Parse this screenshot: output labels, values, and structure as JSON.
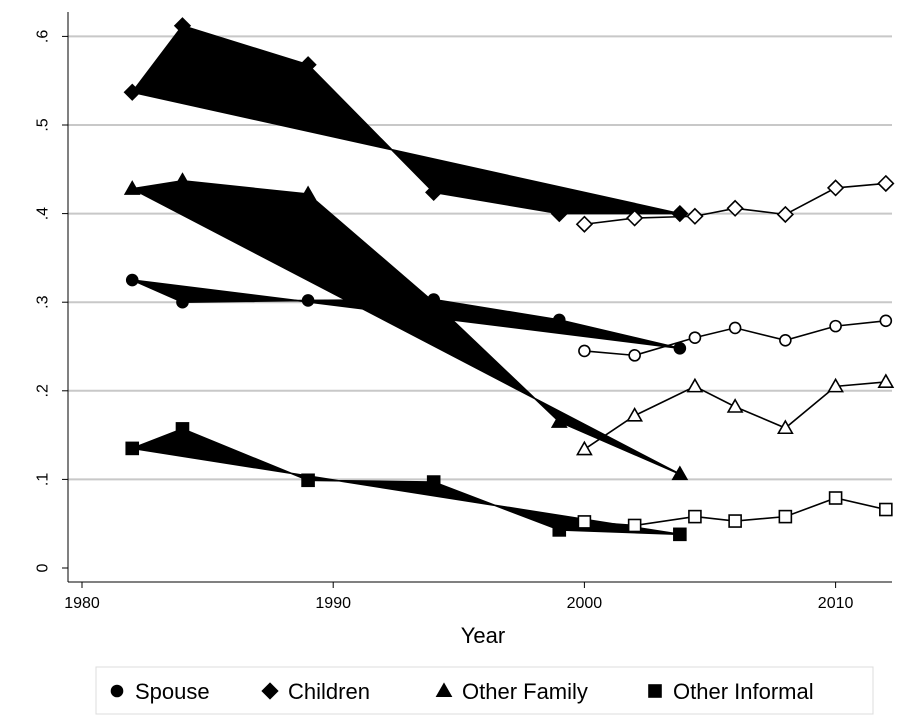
{
  "chart_data": {
    "type": "line",
    "title": "",
    "xlabel": "Year",
    "ylabel": "",
    "xlim": [
      1980,
      2012.5
    ],
    "ylim": [
      0,
      0.6
    ],
    "xticks": [
      1980,
      1990,
      2000,
      2010
    ],
    "yticks": [
      0,
      0.1,
      0.2,
      0.3,
      0.4,
      0.5,
      0.6
    ],
    "ytick_labels": [
      "0",
      ".1",
      ".2",
      ".3",
      ".4",
      ".5",
      ".6"
    ],
    "grid": true,
    "legend_position": "bottom",
    "series": [
      {
        "name": "Spouse",
        "marker": "circle",
        "early": {
          "x": [
            1982,
            1984,
            1989,
            1994,
            1999,
            2003.8
          ],
          "y": [
            0.325,
            0.3,
            0.302,
            0.303,
            0.28,
            0.248
          ]
        },
        "late": {
          "x": [
            2000,
            2002,
            2004.4,
            2006,
            2008,
            2010,
            2012
          ],
          "y": [
            0.245,
            0.24,
            0.26,
            0.271,
            0.257,
            0.273,
            0.279
          ]
        }
      },
      {
        "name": "Children",
        "marker": "diamond",
        "early": {
          "x": [
            1982,
            1984,
            1989,
            1994,
            1999,
            2003.8
          ],
          "y": [
            0.537,
            0.612,
            0.568,
            0.424,
            0.4,
            0.4
          ]
        },
        "late": {
          "x": [
            2000,
            2002,
            2004.4,
            2006,
            2008,
            2010,
            2012
          ],
          "y": [
            0.388,
            0.395,
            0.397,
            0.406,
            0.399,
            0.429,
            0.434
          ]
        }
      },
      {
        "name": "Other Family",
        "marker": "triangle",
        "early": {
          "x": [
            1982,
            1984,
            1989,
            1994,
            1999,
            2003.8
          ],
          "y": [
            0.428,
            0.437,
            0.422,
            0.3,
            0.165,
            0.106
          ]
        },
        "late": {
          "x": [
            2000,
            2002,
            2004.4,
            2006,
            2008,
            2010,
            2012
          ],
          "y": [
            0.134,
            0.172,
            0.205,
            0.182,
            0.158,
            0.205,
            0.21
          ]
        }
      },
      {
        "name": "Other Informal",
        "marker": "square",
        "early": {
          "x": [
            1982,
            1984,
            1989,
            1994,
            1999,
            2003.8
          ],
          "y": [
            0.135,
            0.157,
            0.099,
            0.097,
            0.043,
            0.038
          ]
        },
        "late": {
          "x": [
            2000,
            2002,
            2004.4,
            2006,
            2008,
            2010,
            2012
          ],
          "y": [
            0.052,
            0.048,
            0.058,
            0.053,
            0.058,
            0.079,
            0.066
          ]
        }
      }
    ]
  }
}
